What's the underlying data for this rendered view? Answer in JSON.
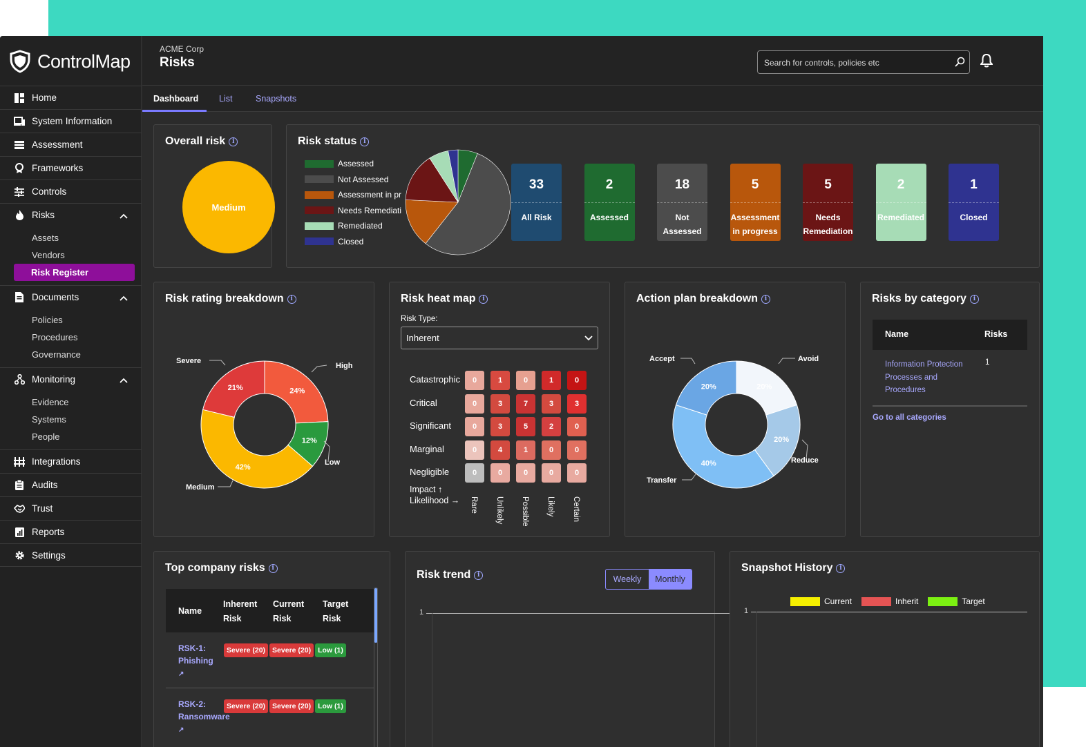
{
  "app": {
    "name": "ControlMap"
  },
  "header": {
    "org": "ACME Corp",
    "title": "Risks",
    "search_placeholder": "Search for controls, policies etc"
  },
  "tabs": [
    {
      "label": "Dashboard"
    },
    {
      "label": "List"
    },
    {
      "label": "Snapshots"
    }
  ],
  "sidebar": {
    "home": "Home",
    "system_information": "System Information",
    "assessment": "Assessment",
    "frameworks": "Frameworks",
    "controls": "Controls",
    "risks": {
      "label": "Risks",
      "sub": [
        "Assets",
        "Vendors",
        "Risk Register"
      ]
    },
    "documents": {
      "label": "Documents",
      "sub": [
        "Policies",
        "Procedures",
        "Governance"
      ]
    },
    "monitoring": {
      "label": "Monitoring",
      "sub": [
        "Evidence",
        "Systems",
        "People"
      ]
    },
    "integrations": "Integrations",
    "audits": "Audits",
    "trust": "Trust",
    "reports": "Reports",
    "settings": "Settings"
  },
  "overall_risk": {
    "title": "Overall risk",
    "value": "Medium",
    "color": "#fbb800"
  },
  "risk_status": {
    "title": "Risk status",
    "legend": [
      {
        "label": "Assessed",
        "color": "#1f6b30"
      },
      {
        "label": "Not Assessed",
        "color": "#4c4c4c"
      },
      {
        "label": "Assessment in pr",
        "color": "#b8570c"
      },
      {
        "label": "Needs Remediati",
        "color": "#6b1515"
      },
      {
        "label": "Remediated",
        "color": "#a7dcb6"
      },
      {
        "label": "Closed",
        "color": "#2f3390"
      }
    ],
    "tiles": [
      {
        "num": "33",
        "label": "All Risk",
        "color": "#1f4b70"
      },
      {
        "num": "2",
        "label": "Assessed",
        "color": "#1f6b30"
      },
      {
        "num": "18",
        "label": "Not Assessed",
        "color": "#4c4c4c"
      },
      {
        "num": "5",
        "label": "Assessment in progress",
        "color": "#b8570c"
      },
      {
        "num": "5",
        "label": "Needs Remediation",
        "color": "#6b1515"
      },
      {
        "num": "2",
        "label": "Remediated",
        "color": "#a7dcb6"
      },
      {
        "num": "1",
        "label": "Closed",
        "color": "#2f3390"
      }
    ]
  },
  "risk_rating": {
    "title": "Risk rating breakdown",
    "labels": {
      "severe": "Severe",
      "high": "High",
      "low": "Low",
      "medium": "Medium"
    },
    "slices": [
      {
        "name": "High",
        "pct": "24%",
        "color": "#f25a3d"
      },
      {
        "name": "Low",
        "pct": "12%",
        "color": "#2a9a3e"
      },
      {
        "name": "Medium",
        "pct": "42%",
        "color": "#fbb800"
      },
      {
        "name": "Severe",
        "pct": "21%",
        "color": "#de3a3a"
      }
    ]
  },
  "heat_map": {
    "title": "Risk heat map",
    "risk_type_label": "Risk Type:",
    "risk_type_value": "Inherent",
    "rows": [
      "Catastrophic",
      "Critical",
      "Significant",
      "Marginal",
      "Negligible"
    ],
    "columns": [
      "Rare",
      "Unlikely",
      "Possible",
      "Likely",
      "Certain"
    ],
    "values": [
      [
        0,
        1,
        0,
        1,
        0
      ],
      [
        0,
        3,
        7,
        3,
        3
      ],
      [
        0,
        3,
        5,
        2,
        0
      ],
      [
        0,
        4,
        1,
        0,
        0
      ],
      [
        0,
        0,
        0,
        0,
        0
      ]
    ],
    "impact_label": "Impact ↑",
    "likelihood_label": "Likelihood →"
  },
  "action_plan": {
    "title": "Action plan breakdown",
    "labels": {
      "accept": "Accept",
      "avoid": "Avoid",
      "reduce": "Reduce",
      "transfer": "Transfer"
    },
    "slices": [
      {
        "name": "Avoid",
        "pct": "20%",
        "color": "#f2f6fb"
      },
      {
        "name": "Reduce",
        "pct": "20%",
        "color": "#a5c9e8"
      },
      {
        "name": "Transfer",
        "pct": "40%",
        "color": "#7fbff5"
      },
      {
        "name": "Accept",
        "pct": "20%",
        "color": "#6aa6e4"
      }
    ]
  },
  "risks_by_category": {
    "title": "Risks by category",
    "headers": {
      "name": "Name",
      "risks": "Risks"
    },
    "rows": [
      {
        "name": "Information Protection Processes and Procedures",
        "risks": "1"
      }
    ],
    "link": "Go to all categories"
  },
  "top_risks": {
    "title": "Top company risks",
    "headers": {
      "name": "Name",
      "inherent": "Inherent Risk",
      "current": "Current Risk",
      "target": "Target Risk"
    },
    "rows": [
      {
        "name": "RSK-1: Phishing",
        "inherent": "Severe (20)",
        "current": "Severe (20)",
        "target": "Low (1)"
      },
      {
        "name": "RSK-2: Ransomware",
        "inherent": "Severe (20)",
        "current": "Severe (20)",
        "target": "Low (1)"
      }
    ]
  },
  "risk_trend": {
    "title": "Risk trend",
    "weekly": "Weekly",
    "monthly": "Monthly",
    "y_tick": "1"
  },
  "snapshot_history": {
    "title": "Snapshot History",
    "legend": [
      {
        "label": "Current",
        "color": "#f5ef00"
      },
      {
        "label": "Inherit",
        "color": "#e55454"
      },
      {
        "label": "Target",
        "color": "#7cf012"
      }
    ],
    "y_tick": "1"
  }
}
